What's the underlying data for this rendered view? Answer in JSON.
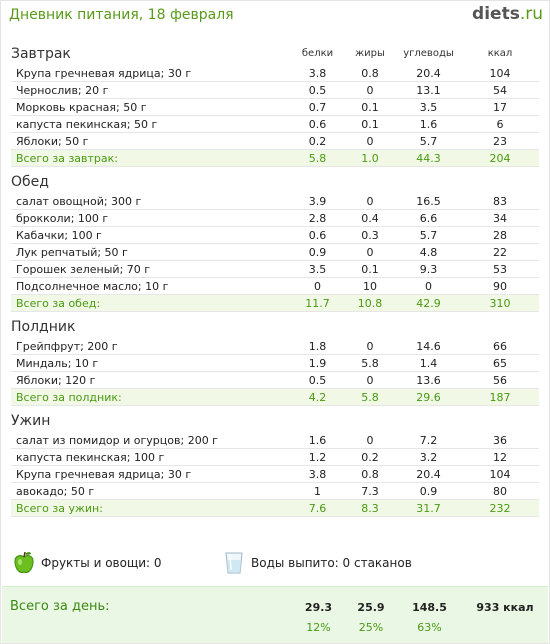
{
  "header": {
    "title": "Дневник питания, 18 февраля",
    "logo_main": "diets",
    "logo_tld": ".ru"
  },
  "columns": {
    "b": "белки",
    "f": "жиры",
    "c": "углеводы",
    "k": "ккал"
  },
  "meals": [
    {
      "title": "Завтрак",
      "rows": [
        {
          "name": "Крупа гречневая ядрица; 30 г",
          "b": "3.8",
          "f": "0.8",
          "c": "20.4",
          "k": "104"
        },
        {
          "name": "Чернослив; 20 г",
          "b": "0.5",
          "f": "0",
          "c": "13.1",
          "k": "54"
        },
        {
          "name": "Морковь красная; 50 г",
          "b": "0.7",
          "f": "0.1",
          "c": "3.5",
          "k": "17"
        },
        {
          "name": "капуста пекинская; 50 г",
          "b": "0.6",
          "f": "0.1",
          "c": "1.6",
          "k": "6"
        },
        {
          "name": "Яблоки; 50 г",
          "b": "0.2",
          "f": "0",
          "c": "5.7",
          "k": "23"
        }
      ],
      "total": {
        "name": "Всего за завтрак:",
        "b": "5.8",
        "f": "1.0",
        "c": "44.3",
        "k": "204"
      }
    },
    {
      "title": "Обед",
      "rows": [
        {
          "name": "салат овощной; 300 г",
          "b": "3.9",
          "f": "0",
          "c": "16.5",
          "k": "83"
        },
        {
          "name": "брокколи; 100 г",
          "b": "2.8",
          "f": "0.4",
          "c": "6.6",
          "k": "34"
        },
        {
          "name": "Кабачки; 100 г",
          "b": "0.6",
          "f": "0.3",
          "c": "5.7",
          "k": "28"
        },
        {
          "name": "Лук репчатый; 50 г",
          "b": "0.9",
          "f": "0",
          "c": "4.8",
          "k": "22"
        },
        {
          "name": "Горошек зеленый; 70 г",
          "b": "3.5",
          "f": "0.1",
          "c": "9.3",
          "k": "53"
        },
        {
          "name": "Подсолнечное масло; 10 г",
          "b": "0",
          "f": "10",
          "c": "0",
          "k": "90"
        }
      ],
      "total": {
        "name": "Всего за обед:",
        "b": "11.7",
        "f": "10.8",
        "c": "42.9",
        "k": "310"
      }
    },
    {
      "title": "Полдник",
      "rows": [
        {
          "name": "Грейпфрут; 200 г",
          "b": "1.8",
          "f": "0",
          "c": "14.6",
          "k": "66"
        },
        {
          "name": "Миндаль; 10 г",
          "b": "1.9",
          "f": "5.8",
          "c": "1.4",
          "k": "65"
        },
        {
          "name": "Яблоки; 120 г",
          "b": "0.5",
          "f": "0",
          "c": "13.6",
          "k": "56"
        }
      ],
      "total": {
        "name": "Всего за полдник:",
        "b": "4.2",
        "f": "5.8",
        "c": "29.6",
        "k": "187"
      }
    },
    {
      "title": "Ужин",
      "rows": [
        {
          "name": "салат из помидор и огурцов; 200 г",
          "b": "1.6",
          "f": "0",
          "c": "7.2",
          "k": "36"
        },
        {
          "name": "капуста пекинская; 100 г",
          "b": "1.2",
          "f": "0.2",
          "c": "3.2",
          "k": "12"
        },
        {
          "name": "Крупа гречневая ядрица; 30 г",
          "b": "3.8",
          "f": "0.8",
          "c": "20.4",
          "k": "104"
        },
        {
          "name": "авокадо; 50 г",
          "b": "1",
          "f": "7.3",
          "c": "0.9",
          "k": "80"
        }
      ],
      "total": {
        "name": "Всего за ужин:",
        "b": "7.6",
        "f": "8.3",
        "c": "31.7",
        "k": "232"
      }
    }
  ],
  "extras": {
    "fruit": "Фрукты и овощи: 0",
    "water": "Воды выпито: 0 стаканов"
  },
  "icons": {
    "fruit": "green-apple-icon",
    "water": "water-glass-icon"
  },
  "day_total": {
    "label": "Всего за день:",
    "b": "29.3",
    "f": "25.9",
    "c": "148.5",
    "k": "933 ккал",
    "b_pct": "12%",
    "f_pct": "25%",
    "c_pct": "63%"
  },
  "colors": {
    "accent": "#5a9a1a",
    "total_bg": "#eaf7e4"
  }
}
